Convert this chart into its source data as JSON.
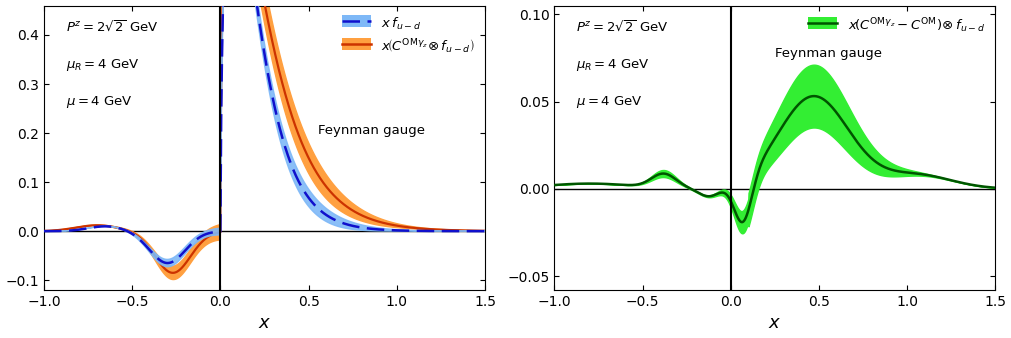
{
  "fig_width": 10.12,
  "fig_height": 3.38,
  "dpi": 100,
  "left_xlim": [
    -1.0,
    1.5
  ],
  "left_ylim": [
    -0.12,
    0.46
  ],
  "left_xticks": [
    -1.0,
    -0.5,
    0.0,
    0.5,
    1.0,
    1.5
  ],
  "left_yticks": [
    -0.1,
    0.0,
    0.1,
    0.2,
    0.3,
    0.4
  ],
  "right_xlim": [
    -1.0,
    1.5
  ],
  "right_ylim": [
    -0.058,
    0.105
  ],
  "right_xticks": [
    -1.0,
    -0.5,
    0.0,
    0.5,
    1.0,
    1.5
  ],
  "right_yticks": [
    -0.05,
    0.0,
    0.05,
    0.1
  ],
  "annotation_left": [
    "$P^z = 2\\sqrt{2}$ GeV",
    "$\\mu_R = 4$ GeV",
    "$\\mu = 4$ GeV"
  ],
  "annotation_right": [
    "$P^z = 2\\sqrt{2}$ GeV",
    "$\\mu_R = 4$ GeV",
    "$\\mu = 4$ GeV"
  ],
  "blue_fill": "#7EB8F7",
  "blue_line": "#1010CC",
  "orange_fill": "#FFA040",
  "orange_line": "#CC3300",
  "green_fill": "#33EE33",
  "green_line": "#005500",
  "xlabel": "$x$"
}
